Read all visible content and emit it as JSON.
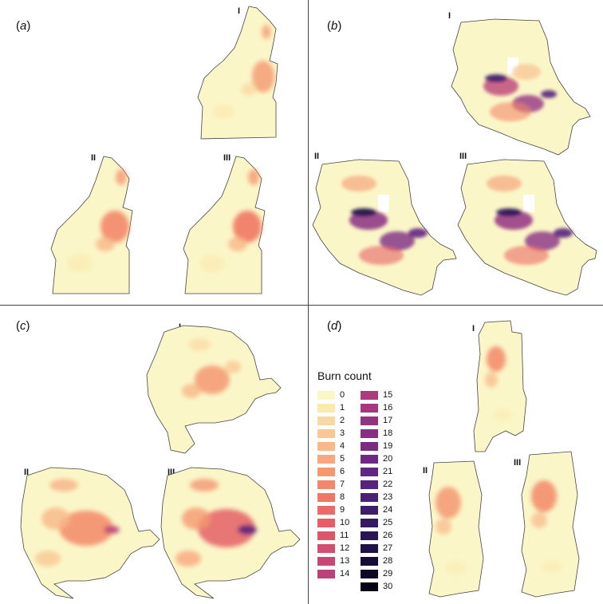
{
  "panels": [
    {
      "id": "a",
      "label": "a",
      "sub_labels": [
        "I",
        "II",
        "III"
      ]
    },
    {
      "id": "b",
      "label": "b",
      "sub_labels": [
        "I",
        "II",
        "III"
      ]
    },
    {
      "id": "c",
      "label": "c",
      "sub_labels": [
        "I",
        "II",
        "III"
      ]
    },
    {
      "id": "d",
      "label": "d",
      "sub_labels": [
        "I",
        "II",
        "III"
      ]
    }
  ],
  "legend": {
    "title": "Burn count",
    "entries": [
      {
        "value": "0",
        "color": "#fbf6c8"
      },
      {
        "value": "1",
        "color": "#fbe9b0"
      },
      {
        "value": "2",
        "color": "#fad9a0"
      },
      {
        "value": "3",
        "color": "#f9c894"
      },
      {
        "value": "4",
        "color": "#f8b887"
      },
      {
        "value": "5",
        "color": "#f7a87c"
      },
      {
        "value": "6",
        "color": "#f59872"
      },
      {
        "value": "7",
        "color": "#f38869"
      },
      {
        "value": "8",
        "color": "#f07863"
      },
      {
        "value": "9",
        "color": "#eb6a63"
      },
      {
        "value": "10",
        "color": "#e45f66"
      },
      {
        "value": "11",
        "color": "#dc576a"
      },
      {
        "value": "12",
        "color": "#d24f6f"
      },
      {
        "value": "13",
        "color": "#c74874"
      },
      {
        "value": "14",
        "color": "#bb4278"
      },
      {
        "value": "15",
        "color": "#ae3c7c"
      },
      {
        "value": "16",
        "color": "#a2387f"
      },
      {
        "value": "17",
        "color": "#953382"
      },
      {
        "value": "18",
        "color": "#882f84"
      },
      {
        "value": "19",
        "color": "#7c2b85"
      },
      {
        "value": "20",
        "color": "#6f2886"
      },
      {
        "value": "21",
        "color": "#632583"
      },
      {
        "value": "22",
        "color": "#56237e"
      },
      {
        "value": "23",
        "color": "#4a2077"
      },
      {
        "value": "24",
        "color": "#3e1d6d"
      },
      {
        "value": "25",
        "color": "#331a62"
      },
      {
        "value": "26",
        "color": "#281655"
      },
      {
        "value": "27",
        "color": "#1e1246"
      },
      {
        "value": "28",
        "color": "#150d36"
      },
      {
        "value": "29",
        "color": "#0d0825"
      },
      {
        "value": "30",
        "color": "#050313"
      }
    ]
  }
}
